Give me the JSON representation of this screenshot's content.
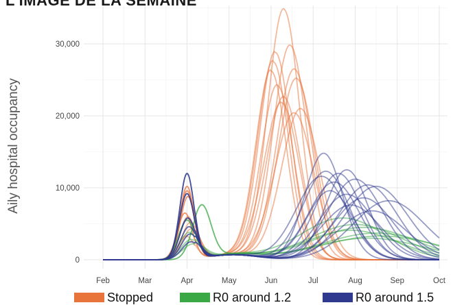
{
  "title": "L'IMAGE DE LA SEMAINE",
  "chart_data": {
    "type": "line",
    "ylabel": "Aily hospital occupancy",
    "xlabel": "",
    "ylim": [
      0,
      35000
    ],
    "yticks": [
      0,
      10000,
      20000,
      30000
    ],
    "ytick_labels": [
      "0",
      "10,000",
      "20,000",
      "30,000"
    ],
    "xlim": [
      0,
      8.4
    ],
    "x_tick_labels": [
      "Feb",
      "Mar",
      "Apr",
      "May",
      "Jun",
      "Jul",
      "Aug",
      "Sep",
      "Oct"
    ],
    "x_ticks": [
      0,
      1,
      2,
      3,
      4,
      5,
      6,
      7,
      8
    ],
    "grid": true,
    "legend_position": "bottom",
    "groups": [
      {
        "name": "Stopped",
        "color": "#e8743b",
        "wave1": [
          {
            "peak_x": 2.0,
            "peak_y": 10200,
            "width": 0.17
          },
          {
            "peak_x": 2.0,
            "peak_y": 9600,
            "width": 0.17
          },
          {
            "peak_x": 2.02,
            "peak_y": 8800,
            "width": 0.18
          },
          {
            "peak_x": 1.95,
            "peak_y": 6500,
            "width": 0.18
          },
          {
            "peak_x": 2.02,
            "peak_y": 6000,
            "width": 0.19
          },
          {
            "peak_x": 2.08,
            "peak_y": 5200,
            "width": 0.2
          },
          {
            "peak_x": 2.1,
            "peak_y": 4300,
            "width": 0.21
          },
          {
            "peak_x": 1.98,
            "peak_y": 3300,
            "width": 0.2
          }
        ],
        "wave2": [
          {
            "peak_x": 4.3,
            "peak_y": 34800,
            "width": 0.38
          },
          {
            "peak_x": 4.45,
            "peak_y": 29800,
            "width": 0.4
          },
          {
            "peak_x": 4.1,
            "peak_y": 28800,
            "width": 0.37
          },
          {
            "peak_x": 4.05,
            "peak_y": 27500,
            "width": 0.37
          },
          {
            "peak_x": 4.55,
            "peak_y": 26500,
            "width": 0.42
          },
          {
            "peak_x": 4.0,
            "peak_y": 26200,
            "width": 0.36
          },
          {
            "peak_x": 4.6,
            "peak_y": 25200,
            "width": 0.43
          },
          {
            "peak_x": 4.15,
            "peak_y": 24200,
            "width": 0.38
          },
          {
            "peak_x": 4.3,
            "peak_y": 22600,
            "width": 0.4
          },
          {
            "peak_x": 4.25,
            "peak_y": 21800,
            "width": 0.42
          },
          {
            "peak_x": 4.7,
            "peak_y": 21000,
            "width": 0.45
          },
          {
            "peak_x": 4.55,
            "peak_y": 20400,
            "width": 0.46
          }
        ]
      },
      {
        "name": "R0 around 1.2",
        "color": "#3aa845",
        "wave1": [
          {
            "peak_x": 2.35,
            "peak_y": 7300,
            "width": 0.22
          },
          {
            "peak_x": 2.0,
            "peak_y": 5500,
            "width": 0.2
          },
          {
            "peak_x": 2.05,
            "peak_y": 3800,
            "width": 0.22
          },
          {
            "peak_x": 2.1,
            "peak_y": 2800,
            "width": 0.24
          },
          {
            "peak_x": 2.15,
            "peak_y": 2200,
            "width": 0.26
          }
        ],
        "wave2": [
          {
            "peak_x": 5.7,
            "peak_y": 5800,
            "width": 1.0
          },
          {
            "peak_x": 6.0,
            "peak_y": 4900,
            "width": 1.1
          },
          {
            "peak_x": 6.2,
            "peak_y": 4500,
            "width": 1.2
          },
          {
            "peak_x": 5.9,
            "peak_y": 4100,
            "width": 1.1
          },
          {
            "peak_x": 6.5,
            "peak_y": 3700,
            "width": 1.3
          },
          {
            "peak_x": 6.6,
            "peak_y": 3300,
            "width": 1.4
          },
          {
            "peak_x": 6.3,
            "peak_y": 3000,
            "width": 1.3
          }
        ]
      },
      {
        "name": "R0 around 1.5",
        "color": "#2f3a8f",
        "wave1": [
          {
            "peak_x": 2.0,
            "peak_y": 12000,
            "width": 0.17
          },
          {
            "peak_x": 2.0,
            "peak_y": 9200,
            "width": 0.18
          },
          {
            "peak_x": 2.02,
            "peak_y": 5800,
            "width": 0.19
          },
          {
            "peak_x": 2.05,
            "peak_y": 4600,
            "width": 0.2
          },
          {
            "peak_x": 2.08,
            "peak_y": 3600,
            "width": 0.21
          },
          {
            "peak_x": 2.1,
            "peak_y": 2500,
            "width": 0.22
          }
        ],
        "wave2": [
          {
            "peak_x": 5.25,
            "peak_y": 14800,
            "width": 0.45
          },
          {
            "peak_x": 5.8,
            "peak_y": 12500,
            "width": 0.5
          },
          {
            "peak_x": 5.3,
            "peak_y": 12300,
            "width": 0.55
          },
          {
            "peak_x": 5.6,
            "peak_y": 12000,
            "width": 0.55
          },
          {
            "peak_x": 5.2,
            "peak_y": 11600,
            "width": 0.6
          },
          {
            "peak_x": 6.0,
            "peak_y": 11200,
            "width": 0.65
          },
          {
            "peak_x": 5.5,
            "peak_y": 10800,
            "width": 0.6
          },
          {
            "peak_x": 6.3,
            "peak_y": 10400,
            "width": 0.7
          },
          {
            "peak_x": 6.5,
            "peak_y": 10200,
            "width": 0.75
          },
          {
            "peak_x": 5.4,
            "peak_y": 9600,
            "width": 0.55
          },
          {
            "peak_x": 5.8,
            "peak_y": 9100,
            "width": 0.65
          },
          {
            "peak_x": 6.2,
            "peak_y": 8600,
            "width": 0.7
          },
          {
            "peak_x": 6.8,
            "peak_y": 8200,
            "width": 0.85
          },
          {
            "peak_x": 5.9,
            "peak_y": 7600,
            "width": 0.7
          },
          {
            "peak_x": 6.4,
            "peak_y": 6800,
            "width": 0.8
          }
        ]
      }
    ]
  }
}
